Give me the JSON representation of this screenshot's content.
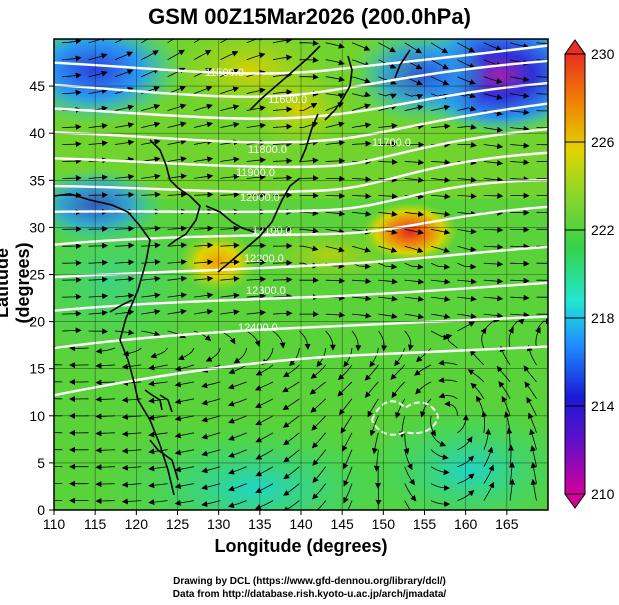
{
  "title": "GSM 00Z15Mar2026 (200.0hPa)",
  "axes": {
    "xlabel": "Longitude (degrees)",
    "ylabel": "Latitude  (degrees)",
    "xticks": [
      "110",
      "115",
      "120",
      "125",
      "130",
      "135",
      "140",
      "145",
      "150",
      "155",
      "160",
      "165"
    ],
    "yticks": [
      "0",
      "5",
      "10",
      "15",
      "20",
      "25",
      "30",
      "35",
      "40",
      "45"
    ],
    "xlim": [
      110,
      170
    ],
    "ylim": [
      0,
      50
    ]
  },
  "colorbar": {
    "labels": [
      "230",
      "226",
      "222",
      "218",
      "214",
      "210"
    ],
    "range": [
      210,
      230
    ],
    "colors": [
      "#d4009a",
      "#1a1ad6",
      "#1e8fff",
      "#22e6d0",
      "#35d24a",
      "#8cd62a",
      "#e0d400",
      "#f08a00",
      "#e83020"
    ]
  },
  "contours": {
    "color": "#ffffff",
    "labels": [
      "11500.0",
      "11600.0",
      "11700.0",
      "11800.0",
      "11900.0",
      "12000.0",
      "12100.0",
      "12200.0",
      "12300.0",
      "12400.0"
    ]
  },
  "credits": {
    "line1": "Drawing by DCL (https://www.gfd-dennou.org/library/dcl/)",
    "line2": "Data from http://database.rish.kyoto-u.ac.jp/arch/jmadata/"
  },
  "chart_data": {
    "type": "heatmap",
    "variable": "temperature field with streamlines and geopotential height contours",
    "level": "200.0hPa",
    "time": "00Z15Mar2026",
    "x_range": [
      110,
      170
    ],
    "y_range": [
      0,
      50
    ],
    "color_range": [
      210,
      230
    ],
    "features": [
      {
        "lon": 152,
        "lat": 32,
        "value": 229
      },
      {
        "lon": 130,
        "lat": 29,
        "value": 226
      },
      {
        "lon": 165,
        "lat": 46,
        "value": 211
      },
      {
        "lon": 115,
        "lat": 45,
        "value": 215
      },
      {
        "lon": 148,
        "lat": 43,
        "value": 217
      }
    ]
  }
}
